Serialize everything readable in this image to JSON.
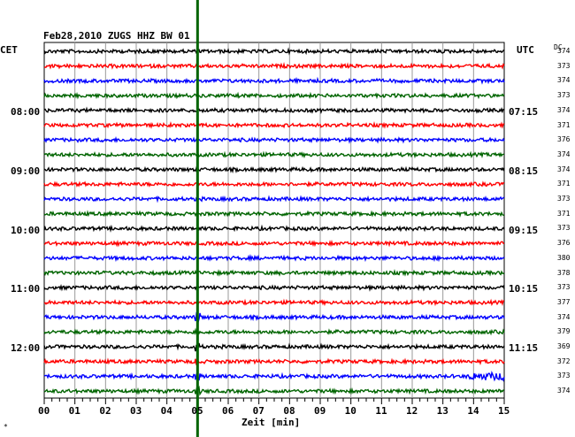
{
  "header": {
    "title": "Feb28,2010   ZUGS HHZ BW 01",
    "left_zone": "CET",
    "right_zone": "UTC",
    "dc_label": "DC"
  },
  "corner_mark": "*",
  "colors": {
    "trace_cycle": [
      "#000000",
      "#ff0000",
      "#0000ff",
      "#006400"
    ],
    "marker": "#006400",
    "grid": "#999999"
  },
  "time_labels_left": [
    "08:00",
    "09:00",
    "10:00",
    "11:00",
    "12:00"
  ],
  "time_labels_right": [
    "07:15",
    "08:15",
    "09:15",
    "10:15",
    "11:15"
  ],
  "dc_values": [
    "374",
    "373",
    "374",
    "373",
    "374",
    "371",
    "376",
    "374",
    "374",
    "371",
    "373",
    "371",
    "373",
    "376",
    "380",
    "378",
    "373",
    "377",
    "374",
    "379",
    "369",
    "372",
    "373",
    "374"
  ],
  "chart_data": {
    "type": "line",
    "title": "Feb28,2010   ZUGS HHZ BW 01",
    "xlabel": "Zeit [min]",
    "ylabel": "",
    "x_ticks": [
      "00",
      "01",
      "02",
      "03",
      "04",
      "05",
      "06",
      "07",
      "08",
      "09",
      "10",
      "11",
      "12",
      "13",
      "14",
      "15"
    ],
    "xlim": [
      0,
      15
    ],
    "marker_minute": 5,
    "trace_count": 24,
    "traces_per_hour": 4,
    "minutes_per_trace": 15,
    "grid": true
  }
}
